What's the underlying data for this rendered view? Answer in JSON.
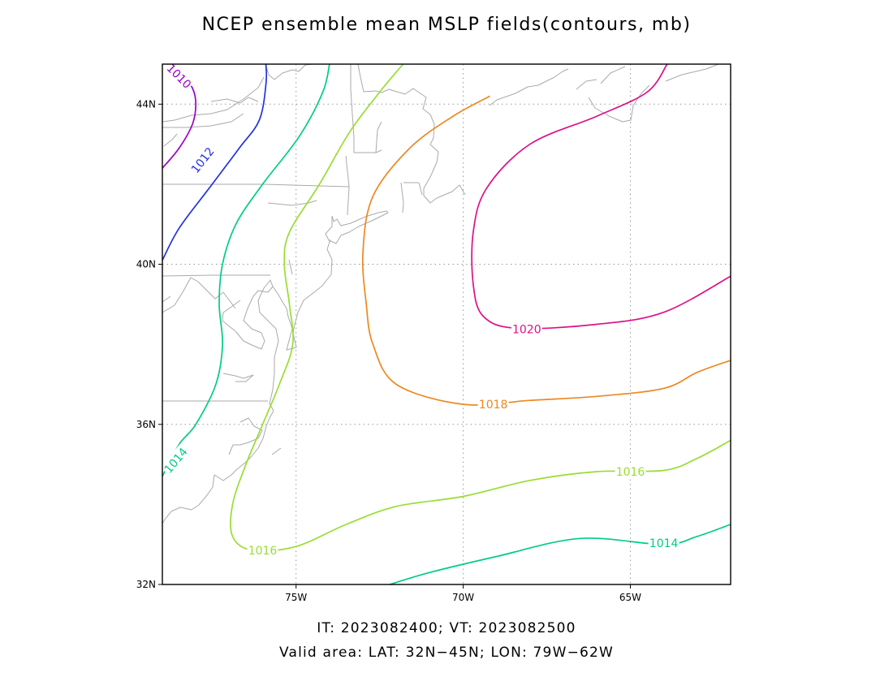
{
  "title": "NCEP ensemble mean MSLP fields(contours, mb)",
  "footer": {
    "times": "IT: 2023082400; VT: 2023082500",
    "area": "Valid area: LAT: 32N−45N; LON: 79W−62W"
  },
  "map": {
    "lat_range": [
      32,
      45
    ],
    "lon_range": [
      -79,
      -62
    ],
    "lat_ticks": [
      {
        "value": 32,
        "label": "32N"
      },
      {
        "value": 36,
        "label": "36N"
      },
      {
        "value": 40,
        "label": "40N"
      },
      {
        "value": 44,
        "label": "44N"
      }
    ],
    "lon_ticks": [
      {
        "value": -75,
        "label": "75W"
      },
      {
        "value": -70,
        "label": "70W"
      },
      {
        "value": -65,
        "label": "65W"
      }
    ],
    "grid": "dotted",
    "coastline_color": "#aaaaaa"
  },
  "contours": [
    {
      "level": 1010,
      "label": "1010",
      "color": "#9b00c8",
      "points": [
        [
          -78.7,
          45.0
        ],
        [
          -78.4,
          44.7
        ],
        [
          -78.1,
          44.4
        ],
        [
          -78.0,
          44.0
        ],
        [
          -78.1,
          43.5
        ],
        [
          -78.5,
          42.9
        ],
        [
          -79.0,
          42.4
        ]
      ],
      "labels": [
        {
          "lon": -78.5,
          "lat": 44.7,
          "angle": 45
        }
      ]
    },
    {
      "level": 1012,
      "label": "1012",
      "color": "#2233dd",
      "points": [
        [
          -75.9,
          45.0
        ],
        [
          -75.9,
          44.5
        ],
        [
          -76.1,
          43.6
        ],
        [
          -76.7,
          42.9
        ],
        [
          -77.6,
          41.9
        ],
        [
          -78.5,
          40.9
        ],
        [
          -79.0,
          40.1
        ]
      ],
      "labels": [
        {
          "lon": -77.8,
          "lat": 42.6,
          "angle": -52
        }
      ]
    },
    {
      "level": 1014,
      "label": "1014",
      "color": "#00cc88",
      "points": [
        [
          -74.0,
          45.0
        ],
        [
          -74.2,
          44.3
        ],
        [
          -74.9,
          43.2
        ],
        [
          -76.0,
          42.0
        ],
        [
          -76.8,
          41.0
        ],
        [
          -77.2,
          40.0
        ],
        [
          -77.3,
          39.0
        ],
        [
          -77.2,
          38.0
        ],
        [
          -77.4,
          37.0
        ],
        [
          -78.0,
          36.0
        ],
        [
          -78.5,
          35.5
        ],
        [
          -79.0,
          34.7
        ]
      ],
      "labels": [
        {
          "lon": -78.6,
          "lat": 35.1,
          "angle": -50
        }
      ]
    },
    {
      "level": 1014,
      "label": "1014",
      "color": "#00cc88",
      "points": [
        [
          -72.2,
          32.0
        ],
        [
          -71.0,
          32.3
        ],
        [
          -69.0,
          32.7
        ],
        [
          -66.5,
          33.15
        ],
        [
          -64.0,
          33.0
        ],
        [
          -63.0,
          33.2
        ],
        [
          -62.0,
          33.5
        ]
      ],
      "labels": [
        {
          "lon": -64.0,
          "lat": 33.03,
          "angle": 0
        }
      ]
    },
    {
      "level": 1016,
      "label": "1016",
      "color": "#99dd33",
      "points": [
        [
          -71.8,
          45.0
        ],
        [
          -72.5,
          44.3
        ],
        [
          -73.4,
          43.3
        ],
        [
          -74.3,
          42.0
        ],
        [
          -75.2,
          40.8
        ],
        [
          -75.35,
          40.0
        ],
        [
          -75.2,
          39.0
        ],
        [
          -75.1,
          38.0
        ],
        [
          -75.5,
          37.0
        ],
        [
          -76.0,
          36.0
        ],
        [
          -76.5,
          35.0
        ],
        [
          -76.9,
          34.0
        ],
        [
          -76.9,
          33.2
        ],
        [
          -76.3,
          32.85
        ],
        [
          -75.0,
          32.95
        ],
        [
          -73.5,
          33.5
        ],
        [
          -72.0,
          33.95
        ],
        [
          -70.0,
          34.2
        ],
        [
          -68.0,
          34.6
        ],
        [
          -66.0,
          34.82
        ],
        [
          -64.0,
          34.85
        ],
        [
          -63.0,
          35.15
        ],
        [
          -62.0,
          35.6
        ]
      ],
      "labels": [
        {
          "lon": -76.0,
          "lat": 32.85,
          "angle": 0
        },
        {
          "lon": -65.0,
          "lat": 34.82,
          "angle": 0
        }
      ]
    },
    {
      "level": 1018,
      "label": "1018",
      "color": "#ee8822",
      "points": [
        [
          -69.2,
          44.2
        ],
        [
          -70.3,
          43.7
        ],
        [
          -71.6,
          42.9
        ],
        [
          -72.7,
          41.7
        ],
        [
          -73.0,
          40.3
        ],
        [
          -72.9,
          39.0
        ],
        [
          -72.7,
          38.0
        ],
        [
          -72.0,
          37.0
        ],
        [
          -70.0,
          36.5
        ],
        [
          -68.0,
          36.6
        ],
        [
          -66.0,
          36.7
        ],
        [
          -64.0,
          36.9
        ],
        [
          -63.0,
          37.3
        ],
        [
          -62.0,
          37.6
        ]
      ],
      "labels": [
        {
          "lon": -69.1,
          "lat": 36.5,
          "angle": 0
        }
      ]
    },
    {
      "level": 1020,
      "label": "1020",
      "color": "#dd1188",
      "points": [
        [
          -63.9,
          45.0
        ],
        [
          -64.5,
          44.3
        ],
        [
          -66.0,
          43.7
        ],
        [
          -68.0,
          43.0
        ],
        [
          -69.3,
          41.9
        ],
        [
          -69.7,
          40.8
        ],
        [
          -69.7,
          39.5
        ],
        [
          -69.4,
          38.7
        ],
        [
          -68.4,
          38.4
        ],
        [
          -66.0,
          38.5
        ],
        [
          -64.0,
          38.8
        ],
        [
          -62.0,
          39.7
        ]
      ],
      "labels": [
        {
          "lon": -68.1,
          "lat": 38.38,
          "angle": 0
        }
      ]
    }
  ]
}
